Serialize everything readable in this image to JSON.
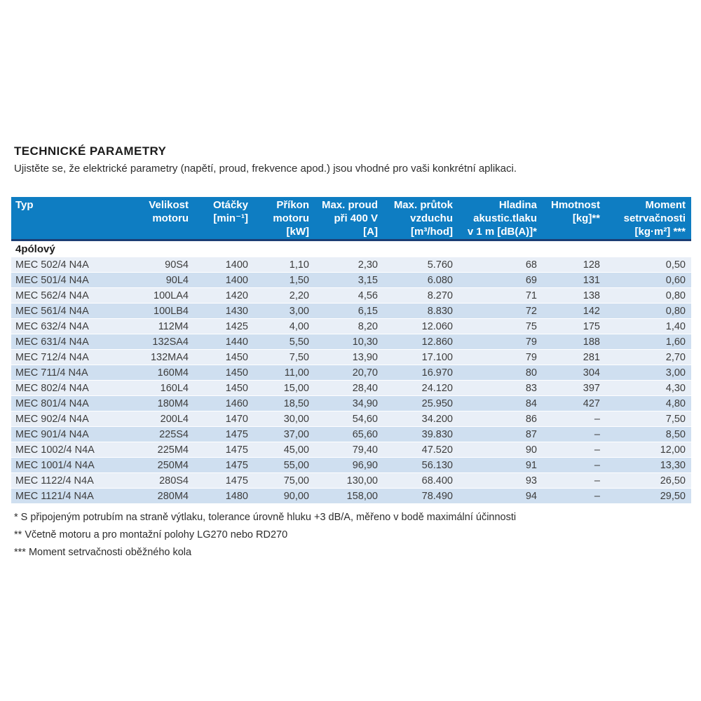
{
  "page": {
    "title": "TECHNICKÉ PARAMETRY",
    "subtitle": "Ujistěte se, že elektrické parametry (napětí, proud, frekvence apod.) jsou vhodné pro vaši konkrétní aplikaci."
  },
  "colors": {
    "header_bg": "#0e7dc2",
    "header_border": "#1c3e74",
    "row_light": "#e9eff7",
    "row_dark": "#cfdff0"
  },
  "table": {
    "header": [
      {
        "lines": [
          "Typ"
        ],
        "align": "left",
        "width": 166
      },
      {
        "lines": [
          "Velikost",
          "motoru"
        ],
        "align": "right",
        "width": 95
      },
      {
        "lines": [
          "Otáčky",
          "[min⁻¹]"
        ],
        "align": "right",
        "width": 85
      },
      {
        "lines": [
          "Příkon",
          "motoru",
          "[kW]"
        ],
        "align": "right",
        "width": 87
      },
      {
        "lines": [
          "Max. proud",
          "při 400 V",
          "[A]"
        ],
        "align": "right",
        "width": 98
      },
      {
        "lines": [
          "Max. průtok",
          "vzduchu",
          "[m³/hod]"
        ],
        "align": "right",
        "width": 107
      },
      {
        "lines": [
          "Hladina",
          "akustic.tlaku",
          "v 1 m [dB(A)]*"
        ],
        "align": "right",
        "width": 120
      },
      {
        "lines": [
          "Hmotnost",
          "[kg]**"
        ],
        "align": "right",
        "width": 90
      },
      {
        "lines": [
          "Moment",
          "setrvačnosti",
          "[kg·m²] ***"
        ],
        "align": "right",
        "width": 122
      }
    ],
    "section_label": "4pólový",
    "rows": [
      [
        "MEC 502/4 N4A",
        "90S4",
        "1400",
        "1,10",
        "2,30",
        "5.760",
        "68",
        "128",
        "0,50"
      ],
      [
        "MEC 501/4 N4A",
        "90L4",
        "1400",
        "1,50",
        "3,15",
        "6.080",
        "69",
        "131",
        "0,60"
      ],
      [
        "MEC 562/4 N4A",
        "100LA4",
        "1420",
        "2,20",
        "4,56",
        "8.270",
        "71",
        "138",
        "0,80"
      ],
      [
        "MEC 561/4 N4A",
        "100LB4",
        "1430",
        "3,00",
        "6,15",
        "8.830",
        "72",
        "142",
        "0,80"
      ],
      [
        "MEC 632/4 N4A",
        "112M4",
        "1425",
        "4,00",
        "8,20",
        "12.060",
        "75",
        "175",
        "1,40"
      ],
      [
        "MEC 631/4 N4A",
        "132SA4",
        "1440",
        "5,50",
        "10,30",
        "12.860",
        "79",
        "188",
        "1,60"
      ],
      [
        "MEC 712/4 N4A",
        "132MA4",
        "1450",
        "7,50",
        "13,90",
        "17.100",
        "79",
        "281",
        "2,70"
      ],
      [
        "MEC 711/4 N4A",
        "160M4",
        "1450",
        "11,00",
        "20,70",
        "16.970",
        "80",
        "304",
        "3,00"
      ],
      [
        "MEC 802/4 N4A",
        "160L4",
        "1450",
        "15,00",
        "28,40",
        "24.120",
        "83",
        "397",
        "4,30"
      ],
      [
        "MEC 801/4 N4A",
        "180M4",
        "1460",
        "18,50",
        "34,90",
        "25.950",
        "84",
        "427",
        "4,80"
      ],
      [
        "MEC 902/4 N4A",
        "200L4",
        "1470",
        "30,00",
        "54,60",
        "34.200",
        "86",
        "–",
        "7,50"
      ],
      [
        "MEC 901/4 N4A",
        "225S4",
        "1475",
        "37,00",
        "65,60",
        "39.830",
        "87",
        "–",
        "8,50"
      ],
      [
        "MEC 1002/4 N4A",
        "225M4",
        "1475",
        "45,00",
        "79,40",
        "47.520",
        "90",
        "–",
        "12,00"
      ],
      [
        "MEC 1001/4 N4A",
        "250M4",
        "1475",
        "55,00",
        "96,90",
        "56.130",
        "91",
        "–",
        "13,30"
      ],
      [
        "MEC 1122/4 N4A",
        "280S4",
        "1475",
        "75,00",
        "130,00",
        "68.400",
        "93",
        "–",
        "26,50"
      ],
      [
        "MEC 1121/4 N4A",
        "280M4",
        "1480",
        "90,00",
        "158,00",
        "78.490",
        "94",
        "–",
        "29,50"
      ]
    ]
  },
  "footnotes": [
    "* S připojeným potrubím na straně výtlaku, tolerance úrovně hluku +3 dB/A, měřeno v bodě maximální účinnosti",
    "** Včetně motoru a pro montažní polohy LG270 nebo RD270",
    "*** Moment setrvačnosti oběžného kola"
  ]
}
